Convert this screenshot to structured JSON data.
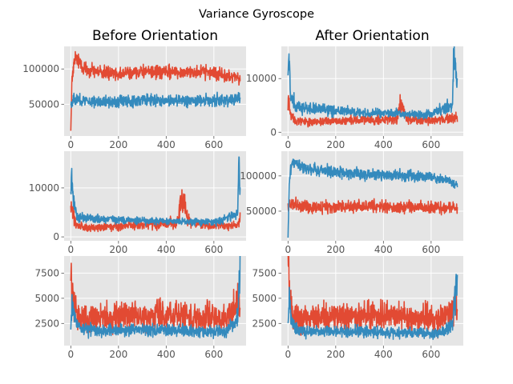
{
  "figure": {
    "suptitle": "Variance Gyroscope",
    "colors": {
      "series_red": "#E24A33",
      "series_blue": "#348ABD",
      "panel_bg": "#E5E5E5",
      "grid": "#FFFFFF",
      "tick_text": "#555555"
    }
  },
  "chart_data": [
    {
      "type": "line",
      "title": "Before Orientation",
      "grid": true,
      "xlim": [
        -28,
        735
      ],
      "ylim": [
        5000,
        132000
      ],
      "xticks": [
        0,
        200,
        400,
        600
      ],
      "xtick_labels": [
        "0",
        "200",
        "400",
        "600"
      ],
      "yticks": [
        50000,
        100000
      ],
      "ytick_labels": [
        "50000",
        "100000"
      ],
      "series": [
        {
          "color": "#E24A33",
          "noise": 0.09,
          "x": [
            0,
            5,
            20,
            50,
            100,
            200,
            300,
            400,
            500,
            600,
            650,
            700,
            710
          ],
          "y": [
            12000,
            90000,
            118000,
            102000,
            97000,
            93000,
            96000,
            95000,
            96000,
            95000,
            90000,
            86000,
            82000
          ]
        },
        {
          "color": "#348ABD",
          "noise": 0.14,
          "x": [
            0,
            10,
            50,
            100,
            200,
            300,
            400,
            500,
            600,
            650,
            700,
            710
          ],
          "y": [
            50000,
            58000,
            55000,
            54000,
            54000,
            56000,
            55000,
            55000,
            56000,
            55000,
            58000,
            60000
          ]
        }
      ]
    },
    {
      "type": "line",
      "title": "After Orientation",
      "grid": true,
      "xlim": [
        -28,
        735
      ],
      "ylim": [
        -700,
        16000
      ],
      "xticks": [
        0,
        200,
        400,
        600
      ],
      "xtick_labels": [
        "0",
        "200",
        "400",
        "600"
      ],
      "yticks": [
        0,
        10000
      ],
      "ytick_labels": [
        "0",
        "10000"
      ],
      "series": [
        {
          "color": "#E24A33",
          "noise": 0.35,
          "x": [
            0,
            5,
            15,
            30,
            100,
            200,
            300,
            400,
            460,
            470,
            500,
            600,
            650,
            690,
            700,
            710
          ],
          "y": [
            6000,
            5500,
            3000,
            2200,
            1800,
            2100,
            2200,
            2300,
            2600,
            5500,
            2400,
            2300,
            2200,
            2500,
            2800,
            2500
          ]
        },
        {
          "color": "#348ABD",
          "noise": 0.22,
          "x": [
            0,
            3,
            10,
            30,
            100,
            200,
            300,
            400,
            500,
            600,
            650,
            690,
            695,
            700,
            710
          ],
          "y": [
            11000,
            13500,
            8000,
            4800,
            4300,
            4000,
            3700,
            3600,
            3400,
            3300,
            4500,
            5000,
            15500,
            13000,
            9500
          ]
        }
      ]
    },
    {
      "type": "line",
      "grid": true,
      "xlim": [
        -28,
        735
      ],
      "ylim": [
        -800,
        17500
      ],
      "xticks": [
        0,
        200,
        400,
        600
      ],
      "xtick_labels": [
        "0",
        "200",
        "400",
        "600"
      ],
      "yticks": [
        0,
        10000
      ],
      "ytick_labels": [
        "0",
        "10000"
      ],
      "series": [
        {
          "color": "#E24A33",
          "noise": 0.35,
          "x": [
            0,
            5,
            20,
            40,
            100,
            200,
            300,
            400,
            450,
            460,
            500,
            600,
            650,
            700,
            710
          ],
          "y": [
            6500,
            6000,
            2500,
            2000,
            1900,
            2200,
            2500,
            2700,
            3000,
            8500,
            2600,
            2300,
            2200,
            2500,
            4000
          ]
        },
        {
          "color": "#348ABD",
          "noise": 0.22,
          "x": [
            0,
            3,
            10,
            30,
            100,
            200,
            300,
            400,
            500,
            600,
            650,
            700,
            705,
            710
          ],
          "y": [
            10000,
            13000,
            7000,
            4000,
            3700,
            3500,
            3300,
            3200,
            3100,
            3000,
            3600,
            5000,
            16500,
            9000
          ]
        }
      ]
    },
    {
      "type": "line",
      "grid": true,
      "xlim": [
        -28,
        735
      ],
      "ylim": [
        8000,
        135000
      ],
      "xticks": [
        0,
        200,
        400,
        600
      ],
      "xtick_labels": [
        "0",
        "200",
        "400",
        "600"
      ],
      "yticks": [
        50000,
        100000
      ],
      "ytick_labels": [
        "50000",
        "100000"
      ],
      "series": [
        {
          "color": "#E24A33",
          "noise": 0.14,
          "x": [
            0,
            10,
            50,
            100,
            200,
            300,
            400,
            500,
            600,
            650,
            700,
            710
          ],
          "y": [
            55000,
            60000,
            57000,
            56000,
            56000,
            57000,
            56000,
            56000,
            55000,
            54000,
            55000,
            56000
          ]
        },
        {
          "color": "#348ABD",
          "noise": 0.07,
          "x": [
            0,
            5,
            15,
            50,
            100,
            200,
            300,
            400,
            500,
            600,
            650,
            700,
            710
          ],
          "y": [
            12000,
            90000,
            118000,
            115000,
            110000,
            105000,
            103000,
            101000,
            100000,
            98000,
            94000,
            88000,
            85000
          ]
        }
      ]
    },
    {
      "type": "line",
      "grid": true,
      "xlim": [
        -28,
        735
      ],
      "ylim": [
        300,
        9200
      ],
      "xticks": [
        0,
        200,
        400,
        600
      ],
      "xtick_labels": [
        "0",
        "200",
        "400",
        "600"
      ],
      "yticks": [
        2500,
        5000,
        7500
      ],
      "ytick_labels": [
        "2500",
        "5000",
        "7500"
      ],
      "series": [
        {
          "color": "#E24A33",
          "noise": 0.42,
          "x": [
            0,
            3,
            10,
            30,
            100,
            200,
            300,
            400,
            500,
            600,
            650,
            690,
            700,
            710
          ],
          "y": [
            8500,
            7500,
            5000,
            3000,
            3000,
            3200,
            3300,
            3200,
            3100,
            3000,
            3000,
            4000,
            5000,
            3500
          ]
        },
        {
          "color": "#348ABD",
          "noise": 0.3,
          "x": [
            0,
            5,
            15,
            40,
            100,
            200,
            300,
            400,
            500,
            600,
            650,
            690,
            700,
            710
          ],
          "y": [
            2500,
            5000,
            3000,
            2000,
            1800,
            1800,
            1900,
            1800,
            1800,
            1700,
            1800,
            2500,
            3500,
            7500
          ]
        }
      ]
    },
    {
      "type": "line",
      "grid": true,
      "xlim": [
        -28,
        735
      ],
      "ylim": [
        300,
        9200
      ],
      "xticks": [
        0,
        200,
        400,
        600
      ],
      "xtick_labels": [
        "0",
        "200",
        "400",
        "600"
      ],
      "yticks": [
        2500,
        5000,
        7500
      ],
      "ytick_labels": [
        "2500",
        "5000",
        "7500"
      ],
      "series": [
        {
          "color": "#E24A33",
          "noise": 0.42,
          "x": [
            0,
            3,
            10,
            30,
            100,
            200,
            300,
            400,
            500,
            600,
            650,
            690,
            700,
            710
          ],
          "y": [
            8500,
            7500,
            4500,
            3000,
            3000,
            3200,
            3300,
            3300,
            3200,
            3000,
            3000,
            4000,
            4500,
            3000
          ]
        },
        {
          "color": "#348ABD",
          "noise": 0.3,
          "x": [
            0,
            5,
            15,
            40,
            100,
            200,
            300,
            400,
            500,
            600,
            650,
            690,
            700,
            710
          ],
          "y": [
            2500,
            5000,
            2800,
            1800,
            1600,
            1700,
            1700,
            1600,
            1600,
            1500,
            1600,
            2500,
            5500,
            6500
          ]
        }
      ]
    }
  ]
}
